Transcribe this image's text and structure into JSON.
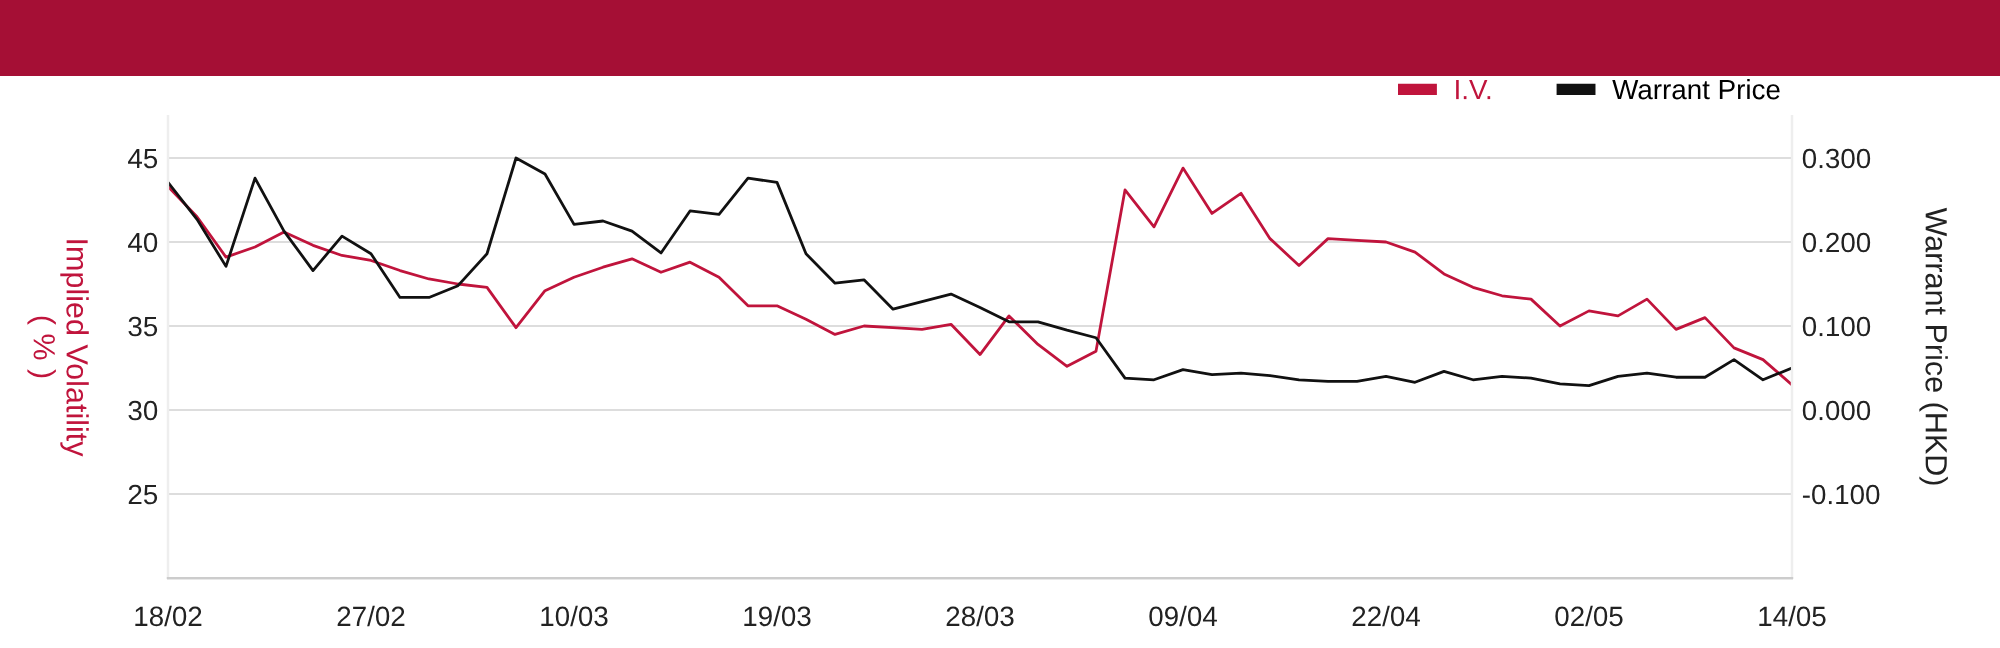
{
  "chart_data": {
    "type": "line",
    "categories": [
      "18/02",
      null,
      null,
      null,
      null,
      null,
      null,
      "27/02",
      null,
      null,
      null,
      null,
      null,
      null,
      "10/03",
      null,
      null,
      null,
      null,
      null,
      null,
      "19/03",
      null,
      null,
      null,
      null,
      null,
      null,
      "28/03",
      null,
      null,
      null,
      null,
      null,
      null,
      "09/04",
      null,
      null,
      null,
      null,
      null,
      null,
      "22/04",
      null,
      null,
      null,
      null,
      null,
      null,
      "02/05",
      null,
      null,
      null,
      null,
      null,
      null,
      "14/05"
    ],
    "ylabel": "Implied Volatility\n( % )",
    "y2label": "Warrant Price (HKD)",
    "ylim": [
      20,
      47.5
    ],
    "yticks": [
      25,
      30,
      35,
      40,
      45
    ],
    "y2lim": [
      -0.2,
      0.35
    ],
    "y2ticks": [
      {
        "value": -0.1,
        "label": "-0.100"
      },
      {
        "value": 0,
        "label": "0.000"
      },
      {
        "value": 0.1,
        "label": "0.100"
      },
      {
        "value": 0.2,
        "label": "0.200"
      },
      {
        "value": 0.3,
        "label": "0.300"
      }
    ],
    "grid": "y",
    "legend": "top right",
    "series": [
      {
        "name": "I.V.",
        "color": "#c0143c",
        "values": [
          43.3,
          41.5,
          39.1,
          39.7,
          40.6,
          39.8,
          39.2,
          38.9,
          38.3,
          37.8,
          37.5,
          37.3,
          34.9,
          37.1,
          37.9,
          38.5,
          39.0,
          38.2,
          38.8,
          37.9,
          36.2,
          36.2,
          35.4,
          34.5,
          35.0,
          34.9,
          34.8,
          35.1,
          33.3,
          35.6,
          33.9,
          32.6,
          33.5,
          43.1,
          40.9,
          44.4,
          41.7,
          42.9,
          40.2,
          38.6,
          40.2,
          40.1,
          40.0,
          39.4,
          38.1,
          37.3,
          36.8,
          36.6,
          35.0,
          35.9,
          35.6,
          36.6,
          34.8,
          35.5,
          33.7,
          33.0,
          31.5
        ]
      },
      {
        "name": "Warrant Price",
        "color": "#111111",
        "axis": "y2",
        "values": [
          0.271,
          0.227,
          0.171,
          0.276,
          0.213,
          0.166,
          0.207,
          0.186,
          0.134,
          0.134,
          0.148,
          0.186,
          0.3,
          0.281,
          0.221,
          0.225,
          0.213,
          0.187,
          0.237,
          0.233,
          0.276,
          0.271,
          0.186,
          0.151,
          0.155,
          0.12,
          0.129,
          0.138,
          0.122,
          0.105,
          0.105,
          0.095,
          0.086,
          0.038,
          0.036,
          0.048,
          0.042,
          0.044,
          0.041,
          0.036,
          0.034,
          0.034,
          0.04,
          0.033,
          0.046,
          0.036,
          0.04,
          0.038,
          0.031,
          0.029,
          0.04,
          0.044,
          0.039,
          0.039,
          0.06,
          0.036,
          0.05
        ]
      }
    ]
  }
}
